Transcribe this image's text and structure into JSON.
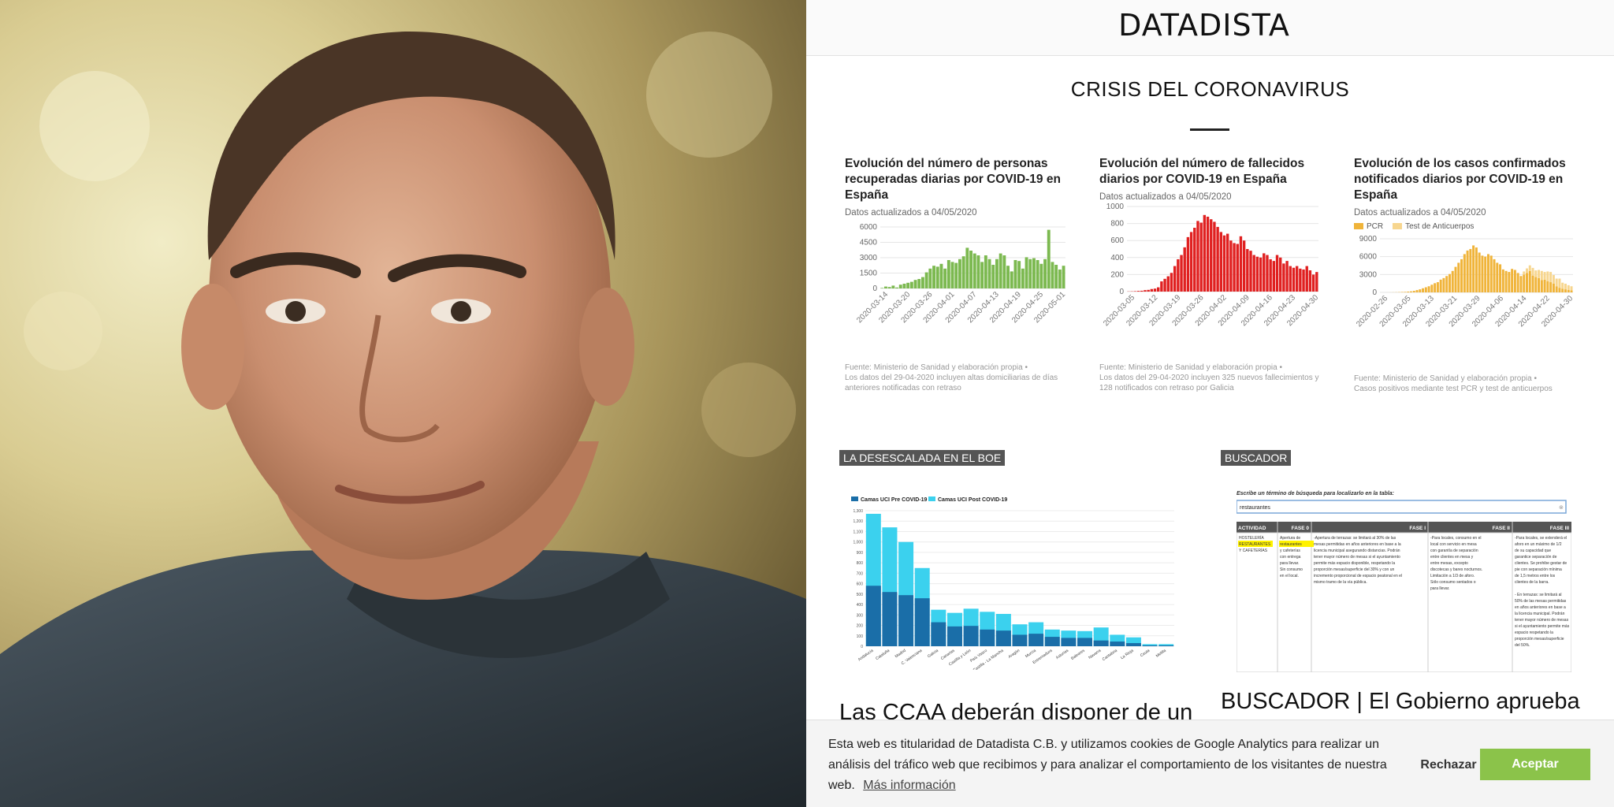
{
  "photo": {
    "alt_icon": "portrait-photo"
  },
  "site": {
    "logo": "DATADISTA",
    "section_title": "CRISIS DEL CORONAVIRUS"
  },
  "cards": [
    {
      "title": "Evolución del número de personas recuperadas diarias por COVID-19 en España",
      "updated": "Datos actualizados a 04/05/2020",
      "source": "Fuente: Ministerio de Sanidad y elaboración propia •",
      "note": "Los datos del 29-04-2020 incluyen altas domiciliarias de días anteriores notificadas con retraso",
      "color": "#7cb950",
      "chart_data": {
        "type": "bar",
        "yticks": [
          "6000",
          "4500",
          "3000",
          "1500",
          "0"
        ],
        "ylim": [
          0,
          6500
        ],
        "xticks": [
          "2020-03-14",
          "2020-03-20",
          "2020-03-26",
          "2020-04-01",
          "2020-04-07",
          "2020-04-13",
          "2020-04-19",
          "2020-04-25",
          "2020-05-01"
        ],
        "values": [
          50,
          200,
          150,
          300,
          100,
          400,
          500,
          600,
          700,
          900,
          1000,
          1200,
          1700,
          2100,
          2400,
          2300,
          2600,
          2100,
          3000,
          2800,
          2700,
          3100,
          3400,
          4300,
          4000,
          3700,
          3500,
          2800,
          3500,
          3100,
          2500,
          3100,
          3700,
          3500,
          2400,
          1800,
          3000,
          2900,
          2100,
          3300,
          3100,
          3200,
          3000,
          2600,
          3100,
          6200,
          2800,
          2500,
          2000,
          2400
        ]
      }
    },
    {
      "title": "Evolución del número de fallecidos diarios por COVID-19 en España",
      "updated": "Datos actualizados a 04/05/2020",
      "source": "Fuente: Ministerio de Sanidad y elaboración propia •",
      "note": "Los datos del 29-04-2020 incluyen 325 nuevos fallecimientos y 128 notificados con retraso por Galicia",
      "color": "#e02020",
      "chart_data": {
        "type": "bar",
        "yticks": [
          "1000",
          "800",
          "600",
          "400",
          "200",
          "0"
        ],
        "ylim": [
          0,
          1000
        ],
        "xticks": [
          "2020-03-05",
          "2020-03-12",
          "2020-03-19",
          "2020-03-26",
          "2020-04-02",
          "2020-04-09",
          "2020-04-16",
          "2020-04-23",
          "2020-04-30"
        ],
        "values": [
          2,
          3,
          5,
          8,
          10,
          17,
          20,
          30,
          35,
          50,
          120,
          150,
          180,
          220,
          300,
          380,
          430,
          520,
          640,
          700,
          750,
          830,
          810,
          900,
          880,
          850,
          820,
          760,
          700,
          660,
          680,
          600,
          570,
          560,
          650,
          600,
          500,
          480,
          430,
          410,
          400,
          450,
          430,
          380,
          360,
          430,
          400,
          330,
          360,
          300,
          280,
          300,
          270,
          260,
          300,
          250,
          200,
          230
        ]
      }
    },
    {
      "title": "Evolución de los casos confirmados notificados diarios por COVID-19 en España",
      "updated": "Datos actualizados a 04/05/2020",
      "legend": [
        "PCR",
        "Test de Anticuerpos"
      ],
      "legend_colors": [
        "#f0b43a",
        "#f7d68f"
      ],
      "source": "Fuente: Ministerio de Sanidad y elaboración propia •",
      "note": "Casos positivos mediante test PCR y test de anticuerpos",
      "color": "#f0b43a",
      "chart_data": {
        "type": "bar",
        "yticks": [
          "9000",
          "6000",
          "3000",
          "0"
        ],
        "ylim": [
          0,
          10500
        ],
        "xticks": [
          "2020-02-26",
          "2020-03-05",
          "2020-03-13",
          "2020-03-21",
          "2020-03-29",
          "2020-04-06",
          "2020-04-14",
          "2020-04-22",
          "2020-04-30"
        ],
        "series": [
          {
            "name": "PCR",
            "values": [
              0,
              0,
              5,
              10,
              20,
              30,
              50,
              80,
              100,
              150,
              200,
              300,
              450,
              600,
              800,
              1000,
              1200,
              1500,
              1800,
              2000,
              2500,
              2800,
              3200,
              3600,
              4200,
              5000,
              5800,
              6500,
              7500,
              8200,
              8500,
              9200,
              8800,
              7800,
              7200,
              7000,
              7500,
              7200,
              6500,
              5800,
              5500,
              4500,
              4200,
              4000,
              4600,
              4400,
              3800,
              3200,
              3500,
              3800,
              4200,
              3300,
              3000,
              2800,
              2400,
              2500,
              2200,
              2000,
              1700,
              1200,
              900,
              700,
              600,
              500,
              400
            ]
          },
          {
            "name": "Test de Anticuerpos",
            "values": [
              0,
              0,
              0,
              0,
              0,
              0,
              0,
              0,
              0,
              0,
              0,
              0,
              0,
              0,
              0,
              0,
              0,
              0,
              0,
              0,
              0,
              0,
              0,
              0,
              0,
              0,
              0,
              0,
              0,
              0,
              0,
              0,
              0,
              0,
              0,
              0,
              0,
              0,
              0,
              0,
              0,
              0,
              0,
              0,
              0,
              0,
              0,
              0,
              600,
              900,
              1100,
              1500,
              1300,
              1600,
              1800,
              1500,
              1900,
              2000,
              1700,
              1500,
              1800,
              1200,
              1100,
              900,
              800
            ]
          }
        ]
      }
    }
  ],
  "articles": [
    {
      "tag": "LA DESESCALADA EN EL BOE",
      "headline": "Las CCAA deberán disponer de un",
      "thumb_chart": {
        "legend": [
          "Camas UCI Pre COVID-19",
          "Camas UCI Post COVID-19"
        ],
        "colors": [
          "#1a6ea8",
          "#3bd1ee"
        ],
        "yticks": [
          "1,300",
          "1,200",
          "1,100",
          "1,000",
          "900",
          "800",
          "700",
          "600",
          "500",
          "400",
          "300",
          "200",
          "100",
          "0"
        ],
        "categories": [
          "Andalucía",
          "Cataluña",
          "Madrid",
          "C. Valenciana",
          "Galicia",
          "Canarias",
          "Castilla y León",
          "País Vasco",
          "Castilla - La Mancha",
          "Aragón",
          "Murcia",
          "Extremadura",
          "Asturias",
          "Baleares",
          "Navarra",
          "Cantabria",
          "La Rioja",
          "Ceuta",
          "Melilla"
        ],
        "pre": [
          580,
          520,
          490,
          460,
          230,
          190,
          195,
          160,
          150,
          110,
          120,
          90,
          80,
          80,
          55,
          45,
          30,
          8,
          8
        ],
        "post": [
          1270,
          1140,
          1000,
          750,
          350,
          320,
          360,
          330,
          310,
          210,
          230,
          160,
          150,
          145,
          180,
          110,
          85,
          20,
          20
        ]
      }
    },
    {
      "tag": "BUSCADOR",
      "headline": "BUSCADOR | El Gobierno aprueba",
      "thumb_search": {
        "prompt": "Escribe un término de búsqueda para localizarlo en la tabla:",
        "query": "restaurantes",
        "columns": [
          "ACTIVIDAD",
          "FASE 0",
          "FASE I",
          "FASE II",
          "FASE III"
        ],
        "row_activity": [
          "HOSTELERÍA",
          "RESTAURANTES",
          "Y CAFETERÍAS"
        ],
        "row_fase0": [
          "Apertura de",
          "restaurantes",
          "y cafeterías",
          "con entrega",
          "para llevar.",
          "Sin consumo",
          "en el local."
        ],
        "row_fase1": [
          "-Apertura de terrazas: se limitará al 30% de las",
          "mesas permitidas en años anteriores en base a la",
          "licencia municipal asegurando distancias. Podrán",
          "tener mayor número de mesas si el ayuntamiento",
          "permite más espacio disponible, respetando la",
          "proporción mesas/superficie del 30% y con un",
          "incremento proporcional de espacio peatonal en el",
          "mismo tramo de la vía pública."
        ],
        "row_fase2": [
          "-Para locales, consumo en el",
          "local con servicio en mesa",
          "con garantía de separación",
          "entre clientes en mesa y",
          "entre mesas, excepto",
          "discotecas y bares nocturnos.",
          "Limitación a 1/3 de aforo.",
          "Sólo consumo sentados o",
          "para llevar."
        ],
        "row_fase3": [
          "-Para locales, se extenderá el",
          "aforo en un máximo de 1/2",
          "de su capacidad que",
          "garantice separación de",
          "clientes. Se prohibe gestar de",
          "pie con separación mínima",
          "de 1,5 metros entre los",
          "clientes de la barra.",
          "",
          "- En terrazas: se limitará al",
          "50% de las mesas permitidas",
          "en años anteriores en base a",
          "la licencia municipal. Podrán",
          "tener mayor número de mesas",
          "si el ayuntamiento permite más",
          "espacio respetando la",
          "proporción mesas/superficie",
          "del 50%."
        ]
      }
    }
  ],
  "cookie": {
    "text": "Esta web es titularidad de Datadista C.B. y utilizamos cookies de Google Analytics para realizar un análisis del tráfico web que recibimos y para analizar el comportamiento de los visitantes de nuestra web.",
    "more_link": "Más información",
    "reject": "Rechazar",
    "accept": "Aceptar"
  }
}
